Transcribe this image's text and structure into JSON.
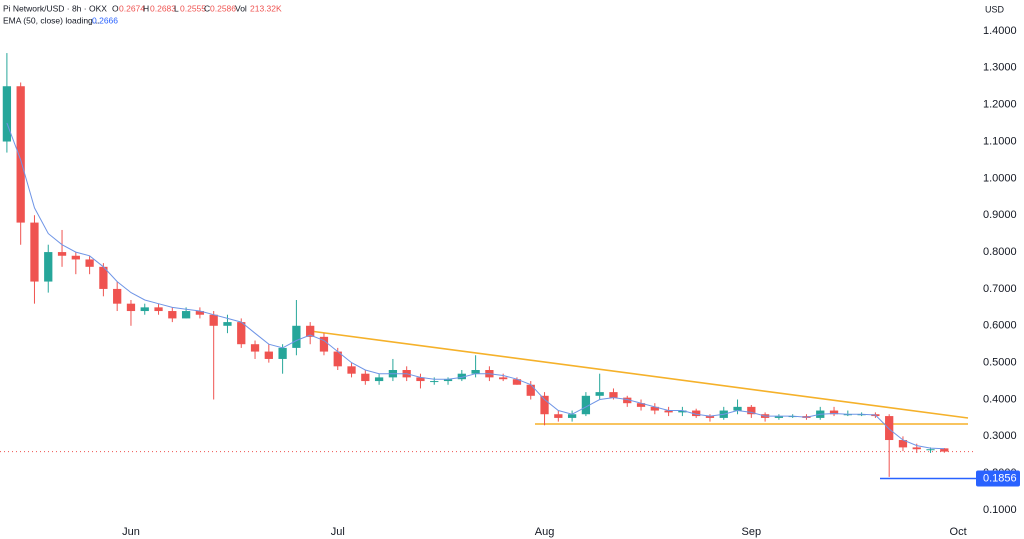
{
  "chart_data": {
    "type": "candlestick",
    "title": "Pi Network/USD · 8h · OKX",
    "ohlc_labels": [
      "O",
      "H",
      "L",
      "C"
    ],
    "volume_label": "Vol",
    "volume": "213.32K",
    "currency": "USD",
    "categories": [
      null,
      null,
      null,
      null,
      null,
      null,
      null,
      null,
      null,
      "Jun",
      null,
      null,
      null,
      null,
      null,
      null,
      null,
      null,
      null,
      null,
      null,
      null,
      null,
      null,
      "Jul",
      null,
      null,
      null,
      null,
      null,
      null,
      null,
      null,
      null,
      null,
      null,
      null,
      null,
      null,
      "Aug",
      null,
      null,
      null,
      null,
      null,
      null,
      null,
      null,
      null,
      null,
      null,
      null,
      null,
      null,
      "Sep",
      null,
      null,
      null,
      null,
      null,
      null,
      null,
      null,
      null,
      null,
      null,
      null,
      null,
      null,
      "Oct"
    ],
    "open": [
      1.1,
      1.25,
      0.88,
      0.72,
      0.8,
      0.79,
      0.78,
      0.76,
      0.7,
      0.66,
      0.64,
      0.65,
      0.64,
      0.62,
      0.64,
      0.63,
      0.6,
      0.61,
      0.55,
      0.53,
      0.51,
      0.54,
      0.6,
      0.57,
      0.53,
      0.49,
      0.47,
      0.45,
      0.46,
      0.48,
      0.46,
      0.45,
      0.45,
      0.455,
      0.47,
      0.48,
      0.46,
      0.455,
      0.44,
      0.41,
      0.36,
      0.35,
      0.36,
      0.41,
      0.42,
      0.405,
      0.39,
      0.38,
      0.37,
      0.365,
      0.37,
      0.355,
      0.35,
      0.37,
      0.38,
      0.36,
      0.35,
      0.355,
      0.355,
      0.35,
      0.37,
      0.36,
      0.36,
      0.36,
      0.355,
      0.29,
      0.27,
      0.265,
      0.2674,
      null
    ],
    "high": [
      1.34,
      1.26,
      0.9,
      0.82,
      0.86,
      0.8,
      0.79,
      0.77,
      0.72,
      0.67,
      0.66,
      0.66,
      0.65,
      0.65,
      0.65,
      0.64,
      0.63,
      0.62,
      0.56,
      0.55,
      0.55,
      0.67,
      0.61,
      0.58,
      0.54,
      0.5,
      0.48,
      0.47,
      0.51,
      0.49,
      0.47,
      0.46,
      0.46,
      0.48,
      0.52,
      0.49,
      0.47,
      0.46,
      0.45,
      0.42,
      0.37,
      0.37,
      0.42,
      0.47,
      0.43,
      0.41,
      0.4,
      0.39,
      0.38,
      0.38,
      0.375,
      0.36,
      0.38,
      0.4,
      0.385,
      0.365,
      0.36,
      0.36,
      0.36,
      0.38,
      0.38,
      0.37,
      0.365,
      0.365,
      0.36,
      0.3,
      0.28,
      0.27,
      0.2683,
      null
    ],
    "low": [
      1.07,
      0.82,
      0.66,
      0.69,
      0.76,
      0.74,
      0.74,
      0.68,
      0.64,
      0.6,
      0.63,
      0.63,
      0.61,
      0.62,
      0.62,
      0.4,
      0.58,
      0.54,
      0.51,
      0.5,
      0.47,
      0.52,
      0.55,
      0.52,
      0.48,
      0.46,
      0.44,
      0.44,
      0.45,
      0.45,
      0.43,
      0.44,
      0.44,
      0.45,
      0.46,
      0.45,
      0.45,
      0.44,
      0.4,
      0.33,
      0.34,
      0.34,
      0.355,
      0.4,
      0.4,
      0.38,
      0.37,
      0.36,
      0.355,
      0.355,
      0.35,
      0.34,
      0.345,
      0.36,
      0.35,
      0.34,
      0.345,
      0.35,
      0.345,
      0.345,
      0.355,
      0.355,
      0.355,
      0.35,
      0.19,
      0.26,
      0.255,
      0.255,
      0.2555,
      null
    ],
    "close": [
      1.25,
      0.88,
      0.72,
      0.8,
      0.79,
      0.78,
      0.76,
      0.7,
      0.66,
      0.64,
      0.65,
      0.64,
      0.62,
      0.64,
      0.63,
      0.6,
      0.61,
      0.55,
      0.53,
      0.51,
      0.54,
      0.6,
      0.57,
      0.53,
      0.49,
      0.47,
      0.45,
      0.46,
      0.48,
      0.46,
      0.45,
      0.45,
      0.455,
      0.47,
      0.48,
      0.46,
      0.455,
      0.44,
      0.41,
      0.36,
      0.35,
      0.36,
      0.41,
      0.42,
      0.405,
      0.39,
      0.38,
      0.37,
      0.365,
      0.37,
      0.355,
      0.35,
      0.37,
      0.38,
      0.36,
      0.35,
      0.355,
      0.355,
      0.35,
      0.37,
      0.36,
      0.36,
      0.36,
      0.355,
      0.29,
      0.27,
      0.265,
      0.265,
      0.2586,
      null
    ],
    "up_color": "#26a69a",
    "down_color": "#ef5350",
    "ema": {
      "name": "EMA (50, close) loading...",
      "color": "#6f95e6",
      "values": [
        1.15,
        1.05,
        0.92,
        0.85,
        0.82,
        0.8,
        0.79,
        0.76,
        0.72,
        0.69,
        0.67,
        0.66,
        0.65,
        0.645,
        0.64,
        0.63,
        0.62,
        0.61,
        0.58,
        0.55,
        0.54,
        0.56,
        0.575,
        0.56,
        0.53,
        0.5,
        0.48,
        0.47,
        0.47,
        0.47,
        0.46,
        0.455,
        0.455,
        0.46,
        0.47,
        0.47,
        0.465,
        0.455,
        0.44,
        0.4,
        0.37,
        0.36,
        0.38,
        0.4,
        0.405,
        0.4,
        0.39,
        0.38,
        0.37,
        0.37,
        0.36,
        0.355,
        0.36,
        0.37,
        0.365,
        0.355,
        0.355,
        0.355,
        0.352,
        0.36,
        0.362,
        0.36,
        0.36,
        0.358,
        0.32,
        0.29,
        0.275,
        0.268,
        0.2666,
        null
      ]
    },
    "price_marker": 0.1856,
    "price_marker_color": "#2962ff",
    "ylim": [
      0.073,
      1.484
    ],
    "yticks": [
      {
        "value": 0.1,
        "label": "0.1000"
      },
      {
        "value": 0.2,
        "label": "0.2000"
      },
      {
        "value": 0.3,
        "label": "0.3000"
      },
      {
        "value": 0.4,
        "label": "0.4000"
      },
      {
        "value": 0.5,
        "label": "0.5000"
      },
      {
        "value": 0.6,
        "label": "0.6000"
      },
      {
        "value": 0.7,
        "label": "0.7000"
      },
      {
        "value": 0.8,
        "label": "0.8000"
      },
      {
        "value": 0.9,
        "label": "0.9000"
      },
      {
        "value": 1.0,
        "label": "1.0000"
      },
      {
        "value": 1.1,
        "label": "1.1000"
      },
      {
        "value": 1.2,
        "label": "1.2000"
      },
      {
        "value": 1.3,
        "label": "1.3000"
      },
      {
        "value": 1.4,
        "label": "1.4000"
      }
    ],
    "grid": false
  }
}
